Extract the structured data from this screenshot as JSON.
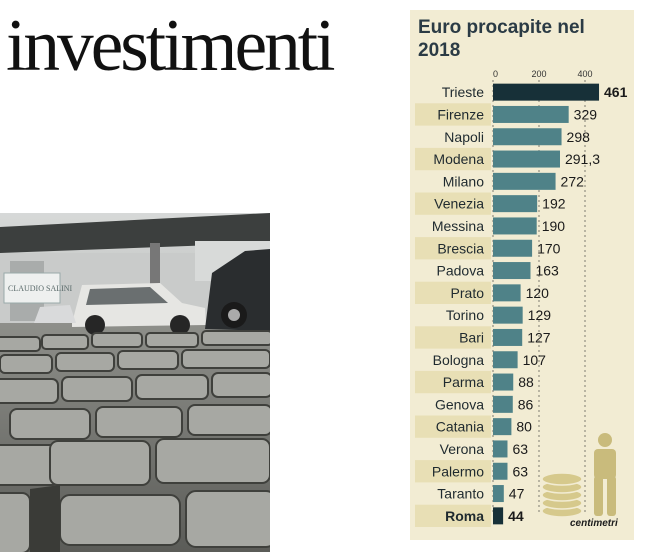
{
  "headline": "investimenti",
  "photo": {
    "sign_text": "CLAUDIO SALINI",
    "description_icon": "street-cobblestones-photo"
  },
  "chart_data": {
    "type": "bar",
    "orientation": "horizontal",
    "title": "Euro procapite nel 2018",
    "xlim": [
      0,
      400
    ],
    "xticks": [
      "0",
      "200",
      "400"
    ],
    "grid": false,
    "categories": [
      "Trieste",
      "Firenze",
      "Napoli",
      "Modena",
      "Milano",
      "Venezia",
      "Messina",
      "Brescia",
      "Padova",
      "Prato",
      "Torino",
      "Bari",
      "Bologna",
      "Parma",
      "Genova",
      "Catania",
      "Verona",
      "Palermo",
      "Taranto",
      "Roma"
    ],
    "values": [
      461,
      329,
      298,
      291.3,
      272,
      192,
      190,
      170,
      163,
      120,
      129,
      127,
      107,
      88,
      86,
      80,
      63,
      63,
      47,
      44
    ],
    "value_labels": [
      "461",
      "329",
      "298",
      "291,3",
      "272",
      "192",
      "190",
      "170",
      "163",
      "120",
      "129",
      "127",
      "107",
      "88",
      "86",
      "80",
      "63",
      "63",
      "47",
      "44"
    ],
    "highlight": [
      "Trieste",
      "Roma"
    ],
    "colors": {
      "bar": "#4f8288",
      "bar_highlight": "#173038",
      "stripe": "#e8dfb5",
      "panel": "#f2ecd3",
      "coin": "#d6c98c",
      "person": "#c9bb7c"
    },
    "icons": [
      "coin-stack-icon",
      "person-icon"
    ]
  },
  "credit": "centimetri"
}
